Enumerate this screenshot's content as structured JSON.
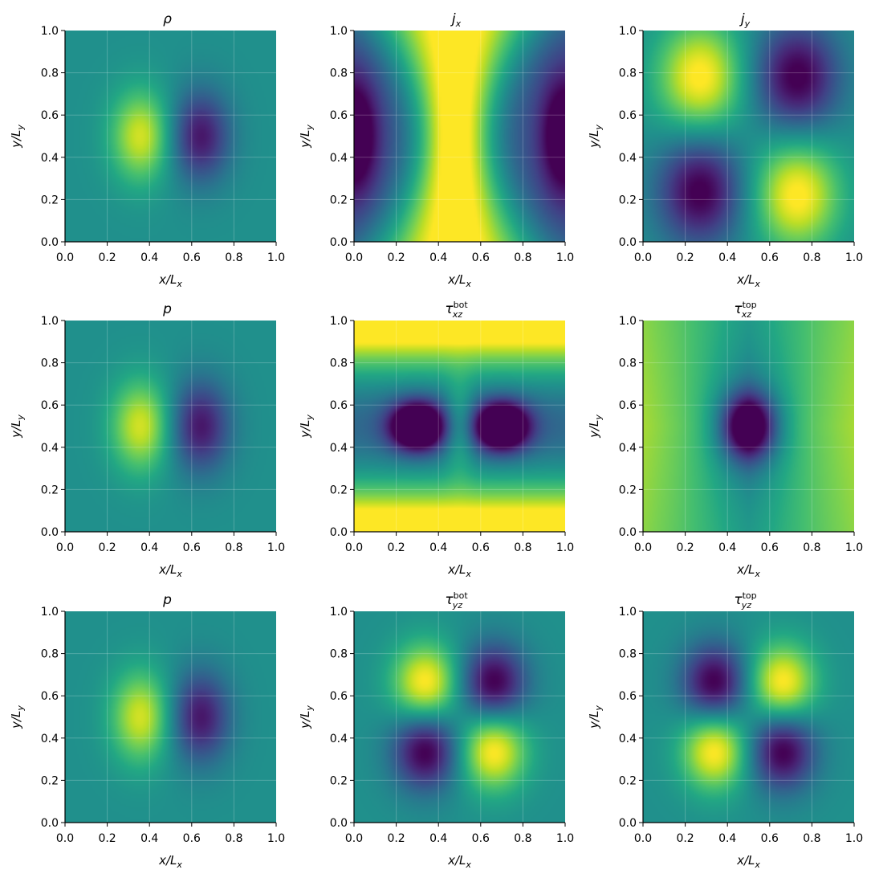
{
  "figure": {
    "colormap": "viridis",
    "grid": true
  },
  "chart_data": [
    {
      "id": "rho",
      "type": "heatmap",
      "title": "ρ",
      "title_sym": "ρ",
      "title_sub": "",
      "title_sup": "",
      "xlabel": "x/L",
      "xlabel_sub": "x",
      "ylabel": "y/L",
      "ylabel_sub": "y",
      "xlim": [
        0,
        1
      ],
      "ylim": [
        0,
        1
      ],
      "xticks": [
        "0.0",
        "0.2",
        "0.4",
        "0.6",
        "0.8",
        "1.0"
      ],
      "yticks": [
        "0.0",
        "0.2",
        "0.4",
        "0.6",
        "0.8",
        "1.0"
      ],
      "field": {
        "kind": "dipole",
        "centers": [
          [
            0.36,
            0.5,
            1
          ],
          [
            0.64,
            0.5,
            -1
          ]
        ],
        "sx": 0.1,
        "sy": 0.15,
        "gain": 0.88
      }
    },
    {
      "id": "jx",
      "type": "heatmap",
      "title": "j_x",
      "title_sym": "j",
      "title_sub": "x",
      "title_sup": "",
      "xlabel": "x/L",
      "xlabel_sub": "x",
      "ylabel": "y/L",
      "ylabel_sub": "y",
      "xlim": [
        0,
        1
      ],
      "ylim": [
        0,
        1
      ],
      "xticks": [
        "0.0",
        "0.2",
        "0.4",
        "0.6",
        "0.8",
        "1.0"
      ],
      "yticks": [
        "0.0",
        "0.2",
        "0.4",
        "0.6",
        "0.8",
        "1.0"
      ],
      "field": {
        "kind": "jx"
      }
    },
    {
      "id": "jy",
      "type": "heatmap",
      "title": "j_y",
      "title_sym": "j",
      "title_sub": "y",
      "title_sup": "",
      "xlabel": "x/L",
      "xlabel_sub": "x",
      "ylabel": "y/L",
      "ylabel_sub": "y",
      "xlim": [
        0,
        1
      ],
      "ylim": [
        0,
        1
      ],
      "xticks": [
        "0.0",
        "0.2",
        "0.4",
        "0.6",
        "0.8",
        "1.0"
      ],
      "yticks": [
        "0.0",
        "0.2",
        "0.4",
        "0.6",
        "0.8",
        "1.0"
      ],
      "field": {
        "kind": "quad",
        "centers": [
          [
            0.27,
            0.78,
            1
          ],
          [
            0.73,
            0.78,
            -1
          ],
          [
            0.27,
            0.24,
            -1
          ],
          [
            0.73,
            0.22,
            1
          ]
        ],
        "sx": 0.14,
        "sy": 0.18,
        "gain": 1.05
      }
    },
    {
      "id": "p1",
      "type": "heatmap",
      "title": "p",
      "title_sym": "p",
      "title_sub": "",
      "title_sup": "",
      "xlabel": "x/L",
      "xlabel_sub": "x",
      "ylabel": "y/L",
      "ylabel_sub": "y",
      "xlim": [
        0,
        1
      ],
      "ylim": [
        0,
        1
      ],
      "xticks": [
        "0.0",
        "0.2",
        "0.4",
        "0.6",
        "0.8",
        "1.0"
      ],
      "yticks": [
        "0.0",
        "0.2",
        "0.4",
        "0.6",
        "0.8",
        "1.0"
      ],
      "field": {
        "kind": "dipole",
        "centers": [
          [
            0.36,
            0.5,
            1
          ],
          [
            0.64,
            0.5,
            -1
          ]
        ],
        "sx": 0.1,
        "sy": 0.15,
        "gain": 0.88
      }
    },
    {
      "id": "tau_xz_bot",
      "type": "heatmap",
      "title": "τ_xz^bot",
      "title_sym": "τ",
      "title_sub": "xz",
      "title_sup": "bot",
      "xlabel": "x/L",
      "xlabel_sub": "x",
      "ylabel": "y/L",
      "ylabel_sub": "y",
      "xlim": [
        0,
        1
      ],
      "ylim": [
        0,
        1
      ],
      "xticks": [
        "0.0",
        "0.2",
        "0.4",
        "0.6",
        "0.8",
        "1.0"
      ],
      "yticks": [
        "0.0",
        "0.2",
        "0.4",
        "0.6",
        "0.8",
        "1.0"
      ],
      "field": {
        "kind": "txzbot"
      }
    },
    {
      "id": "tau_xz_top",
      "type": "heatmap",
      "title": "τ_xz^top",
      "title_sym": "τ",
      "title_sub": "xz",
      "title_sup": "top",
      "xlabel": "x/L",
      "xlabel_sub": "x",
      "ylabel": "y/L",
      "ylabel_sub": "y",
      "xlim": [
        0,
        1
      ],
      "ylim": [
        0,
        1
      ],
      "xticks": [
        "0.0",
        "0.2",
        "0.4",
        "0.6",
        "0.8",
        "1.0"
      ],
      "yticks": [
        "0.0",
        "0.2",
        "0.4",
        "0.6",
        "0.8",
        "1.0"
      ],
      "field": {
        "kind": "txztop"
      }
    },
    {
      "id": "p2",
      "type": "heatmap",
      "title": "p",
      "title_sym": "p",
      "title_sub": "",
      "title_sup": "",
      "xlabel": "x/L",
      "xlabel_sub": "x",
      "ylabel": "y/L",
      "ylabel_sub": "y",
      "xlim": [
        0,
        1
      ],
      "ylim": [
        0,
        1
      ],
      "xticks": [
        "0.0",
        "0.2",
        "0.4",
        "0.6",
        "0.8",
        "1.0"
      ],
      "yticks": [
        "0.0",
        "0.2",
        "0.4",
        "0.6",
        "0.8",
        "1.0"
      ],
      "field": {
        "kind": "dipole",
        "centers": [
          [
            0.36,
            0.5,
            1
          ],
          [
            0.64,
            0.5,
            -1
          ]
        ],
        "sx": 0.1,
        "sy": 0.15,
        "gain": 0.88
      }
    },
    {
      "id": "tau_yz_bot",
      "type": "heatmap",
      "title": "τ_yz^bot",
      "title_sym": "τ",
      "title_sub": "yz",
      "title_sup": "bot",
      "xlabel": "x/L",
      "xlabel_sub": "x",
      "ylabel": "y/L",
      "ylabel_sub": "y",
      "xlim": [
        0,
        1
      ],
      "ylim": [
        0,
        1
      ],
      "xticks": [
        "0.0",
        "0.2",
        "0.4",
        "0.6",
        "0.8",
        "1.0"
      ],
      "yticks": [
        "0.0",
        "0.2",
        "0.4",
        "0.6",
        "0.8",
        "1.0"
      ],
      "field": {
        "kind": "quad",
        "centers": [
          [
            0.34,
            0.66,
            1
          ],
          [
            0.66,
            0.66,
            -1
          ],
          [
            0.34,
            0.34,
            -1
          ],
          [
            0.66,
            0.34,
            1
          ]
        ],
        "sx": 0.11,
        "sy": 0.13,
        "gain": 1.05
      }
    },
    {
      "id": "tau_yz_top",
      "type": "heatmap",
      "title": "τ_yz^top",
      "title_sym": "τ",
      "title_sub": "yz",
      "title_sup": "top",
      "xlabel": "x/L",
      "xlabel_sub": "x",
      "ylabel": "y/L",
      "ylabel_sub": "y",
      "xlim": [
        0,
        1
      ],
      "ylim": [
        0,
        1
      ],
      "xticks": [
        "0.0",
        "0.2",
        "0.4",
        "0.6",
        "0.8",
        "1.0"
      ],
      "yticks": [
        "0.0",
        "0.2",
        "0.4",
        "0.6",
        "0.8",
        "1.0"
      ],
      "field": {
        "kind": "quad",
        "centers": [
          [
            0.34,
            0.66,
            -1
          ],
          [
            0.66,
            0.66,
            1
          ],
          [
            0.34,
            0.34,
            1
          ],
          [
            0.66,
            0.34,
            -1
          ]
        ],
        "sx": 0.11,
        "sy": 0.13,
        "gain": 1.05
      }
    }
  ]
}
